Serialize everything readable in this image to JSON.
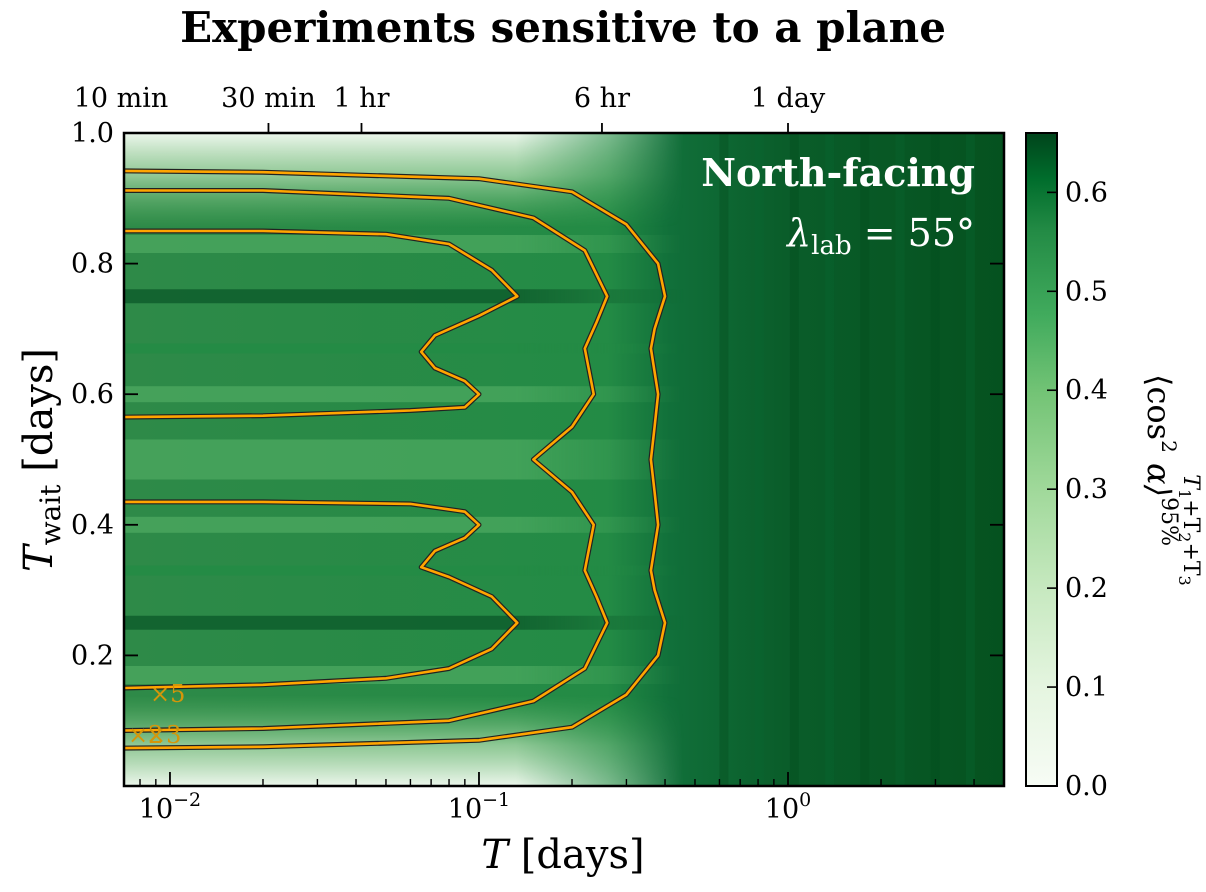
{
  "chart_data": {
    "type": "heatmap",
    "title": "Experiments sensitive to a plane",
    "xlabel_main": "T",
    "xlabel_rest": " [days]",
    "ylabel_main": "T",
    "ylabel_sub": "wait",
    "ylabel_rest": " [days]",
    "x_scale": "log",
    "xlim": [
      0.0071,
      5.0
    ],
    "ylim": [
      0.0,
      1.0
    ],
    "x_ticks_major": [
      {
        "value": 0.01,
        "base": "10",
        "exp": "−2"
      },
      {
        "value": 0.1,
        "base": "10",
        "exp": "−1"
      },
      {
        "value": 1.0,
        "base": "10",
        "exp": "0"
      }
    ],
    "y_ticks": [
      {
        "value": 0.2,
        "label": "0.2"
      },
      {
        "value": 0.4,
        "label": "0.4"
      },
      {
        "value": 0.6,
        "label": "0.6"
      },
      {
        "value": 0.8,
        "label": "0.8"
      },
      {
        "value": 1.0,
        "label": "1.0"
      }
    ],
    "top_axis_ticks": [
      {
        "value": 0.006944,
        "label": "10 min"
      },
      {
        "value": 0.020833,
        "label": "30 min"
      },
      {
        "value": 0.041667,
        "label": "1 hr"
      },
      {
        "value": 0.25,
        "label": "6 hr"
      },
      {
        "value": 1.0,
        "label": "1 day"
      }
    ],
    "colorbar": {
      "label": "⟨cos² α⟩ 95% T1+T2+T3",
      "label_main": "⟨cos",
      "label_sup2": "2",
      "label_alpha": " α⟩",
      "label_sup": "95%",
      "label_sub": "T",
      "label_sub1": "1",
      "label_plus1": "+T",
      "label_sub2": "2",
      "label_plus2": "+T",
      "label_sub3": "3",
      "range": [
        0.0,
        0.66
      ],
      "ticks": [
        {
          "value": 0.0,
          "label": "0.0"
        },
        {
          "value": 0.1,
          "label": "0.1"
        },
        {
          "value": 0.2,
          "label": "0.2"
        },
        {
          "value": 0.3,
          "label": "0.3"
        },
        {
          "value": 0.4,
          "label": "0.4"
        },
        {
          "value": 0.5,
          "label": "0.5"
        },
        {
          "value": 0.6,
          "label": "0.6"
        }
      ],
      "colormap": "Greens"
    },
    "annotations": {
      "orientation": "North-facing",
      "latitude_symbol": "λ",
      "latitude_sub": "lab",
      "latitude_value": " = 55°"
    },
    "contour_labels": [
      "×5",
      "×2",
      "×3"
    ],
    "contours": [
      {
        "name": "×5",
        "points": [
          [
            0.0071,
            0.15
          ],
          [
            0.02,
            0.155
          ],
          [
            0.05,
            0.165
          ],
          [
            0.08,
            0.18
          ],
          [
            0.11,
            0.21
          ],
          [
            0.133,
            0.25
          ],
          [
            0.11,
            0.29
          ],
          [
            0.08,
            0.32
          ],
          [
            0.065,
            0.335
          ],
          [
            0.072,
            0.36
          ],
          [
            0.09,
            0.38
          ],
          [
            0.1,
            0.4
          ],
          [
            0.09,
            0.42
          ],
          [
            0.06,
            0.432
          ],
          [
            0.02,
            0.435
          ],
          [
            0.0071,
            0.435
          ]
        ]
      },
      {
        "name": "×5",
        "points": [
          [
            0.0071,
            0.565
          ],
          [
            0.02,
            0.567
          ],
          [
            0.06,
            0.575
          ],
          [
            0.09,
            0.58
          ],
          [
            0.1,
            0.6
          ],
          [
            0.09,
            0.62
          ],
          [
            0.072,
            0.64
          ],
          [
            0.065,
            0.665
          ],
          [
            0.072,
            0.69
          ],
          [
            0.1,
            0.72
          ],
          [
            0.133,
            0.75
          ],
          [
            0.11,
            0.79
          ],
          [
            0.08,
            0.83
          ],
          [
            0.05,
            0.845
          ],
          [
            0.02,
            0.85
          ],
          [
            0.0071,
            0.85
          ]
        ]
      },
      {
        "name": "×2",
        "points": [
          [
            0.0071,
            0.085
          ],
          [
            0.02,
            0.088
          ],
          [
            0.08,
            0.1
          ],
          [
            0.15,
            0.13
          ],
          [
            0.22,
            0.18
          ],
          [
            0.26,
            0.25
          ],
          [
            0.24,
            0.29
          ],
          [
            0.22,
            0.33
          ],
          [
            0.235,
            0.4
          ],
          [
            0.2,
            0.45
          ],
          [
            0.15,
            0.5
          ],
          [
            0.2,
            0.55
          ],
          [
            0.235,
            0.6
          ],
          [
            0.22,
            0.67
          ],
          [
            0.24,
            0.71
          ],
          [
            0.26,
            0.75
          ],
          [
            0.22,
            0.82
          ],
          [
            0.15,
            0.87
          ],
          [
            0.08,
            0.9
          ],
          [
            0.02,
            0.912
          ],
          [
            0.0071,
            0.912
          ]
        ]
      },
      {
        "name": "×3",
        "points": [
          [
            0.0071,
            0.058
          ],
          [
            0.02,
            0.06
          ],
          [
            0.1,
            0.07
          ],
          [
            0.2,
            0.09
          ],
          [
            0.3,
            0.14
          ],
          [
            0.38,
            0.2
          ],
          [
            0.4,
            0.25
          ],
          [
            0.37,
            0.3
          ],
          [
            0.36,
            0.33
          ],
          [
            0.38,
            0.4
          ],
          [
            0.37,
            0.45
          ],
          [
            0.36,
            0.5
          ],
          [
            0.37,
            0.55
          ],
          [
            0.38,
            0.6
          ],
          [
            0.36,
            0.67
          ],
          [
            0.37,
            0.7
          ],
          [
            0.4,
            0.75
          ],
          [
            0.38,
            0.8
          ],
          [
            0.3,
            0.86
          ],
          [
            0.2,
            0.91
          ],
          [
            0.1,
            0.93
          ],
          [
            0.02,
            0.94
          ],
          [
            0.0071,
            0.942
          ]
        ]
      }
    ],
    "colors": {
      "contour": "#ffa500",
      "contour_edge": "#222222",
      "colormap_light": "#f7fcf5",
      "colormap_dark": "#00441b"
    }
  }
}
